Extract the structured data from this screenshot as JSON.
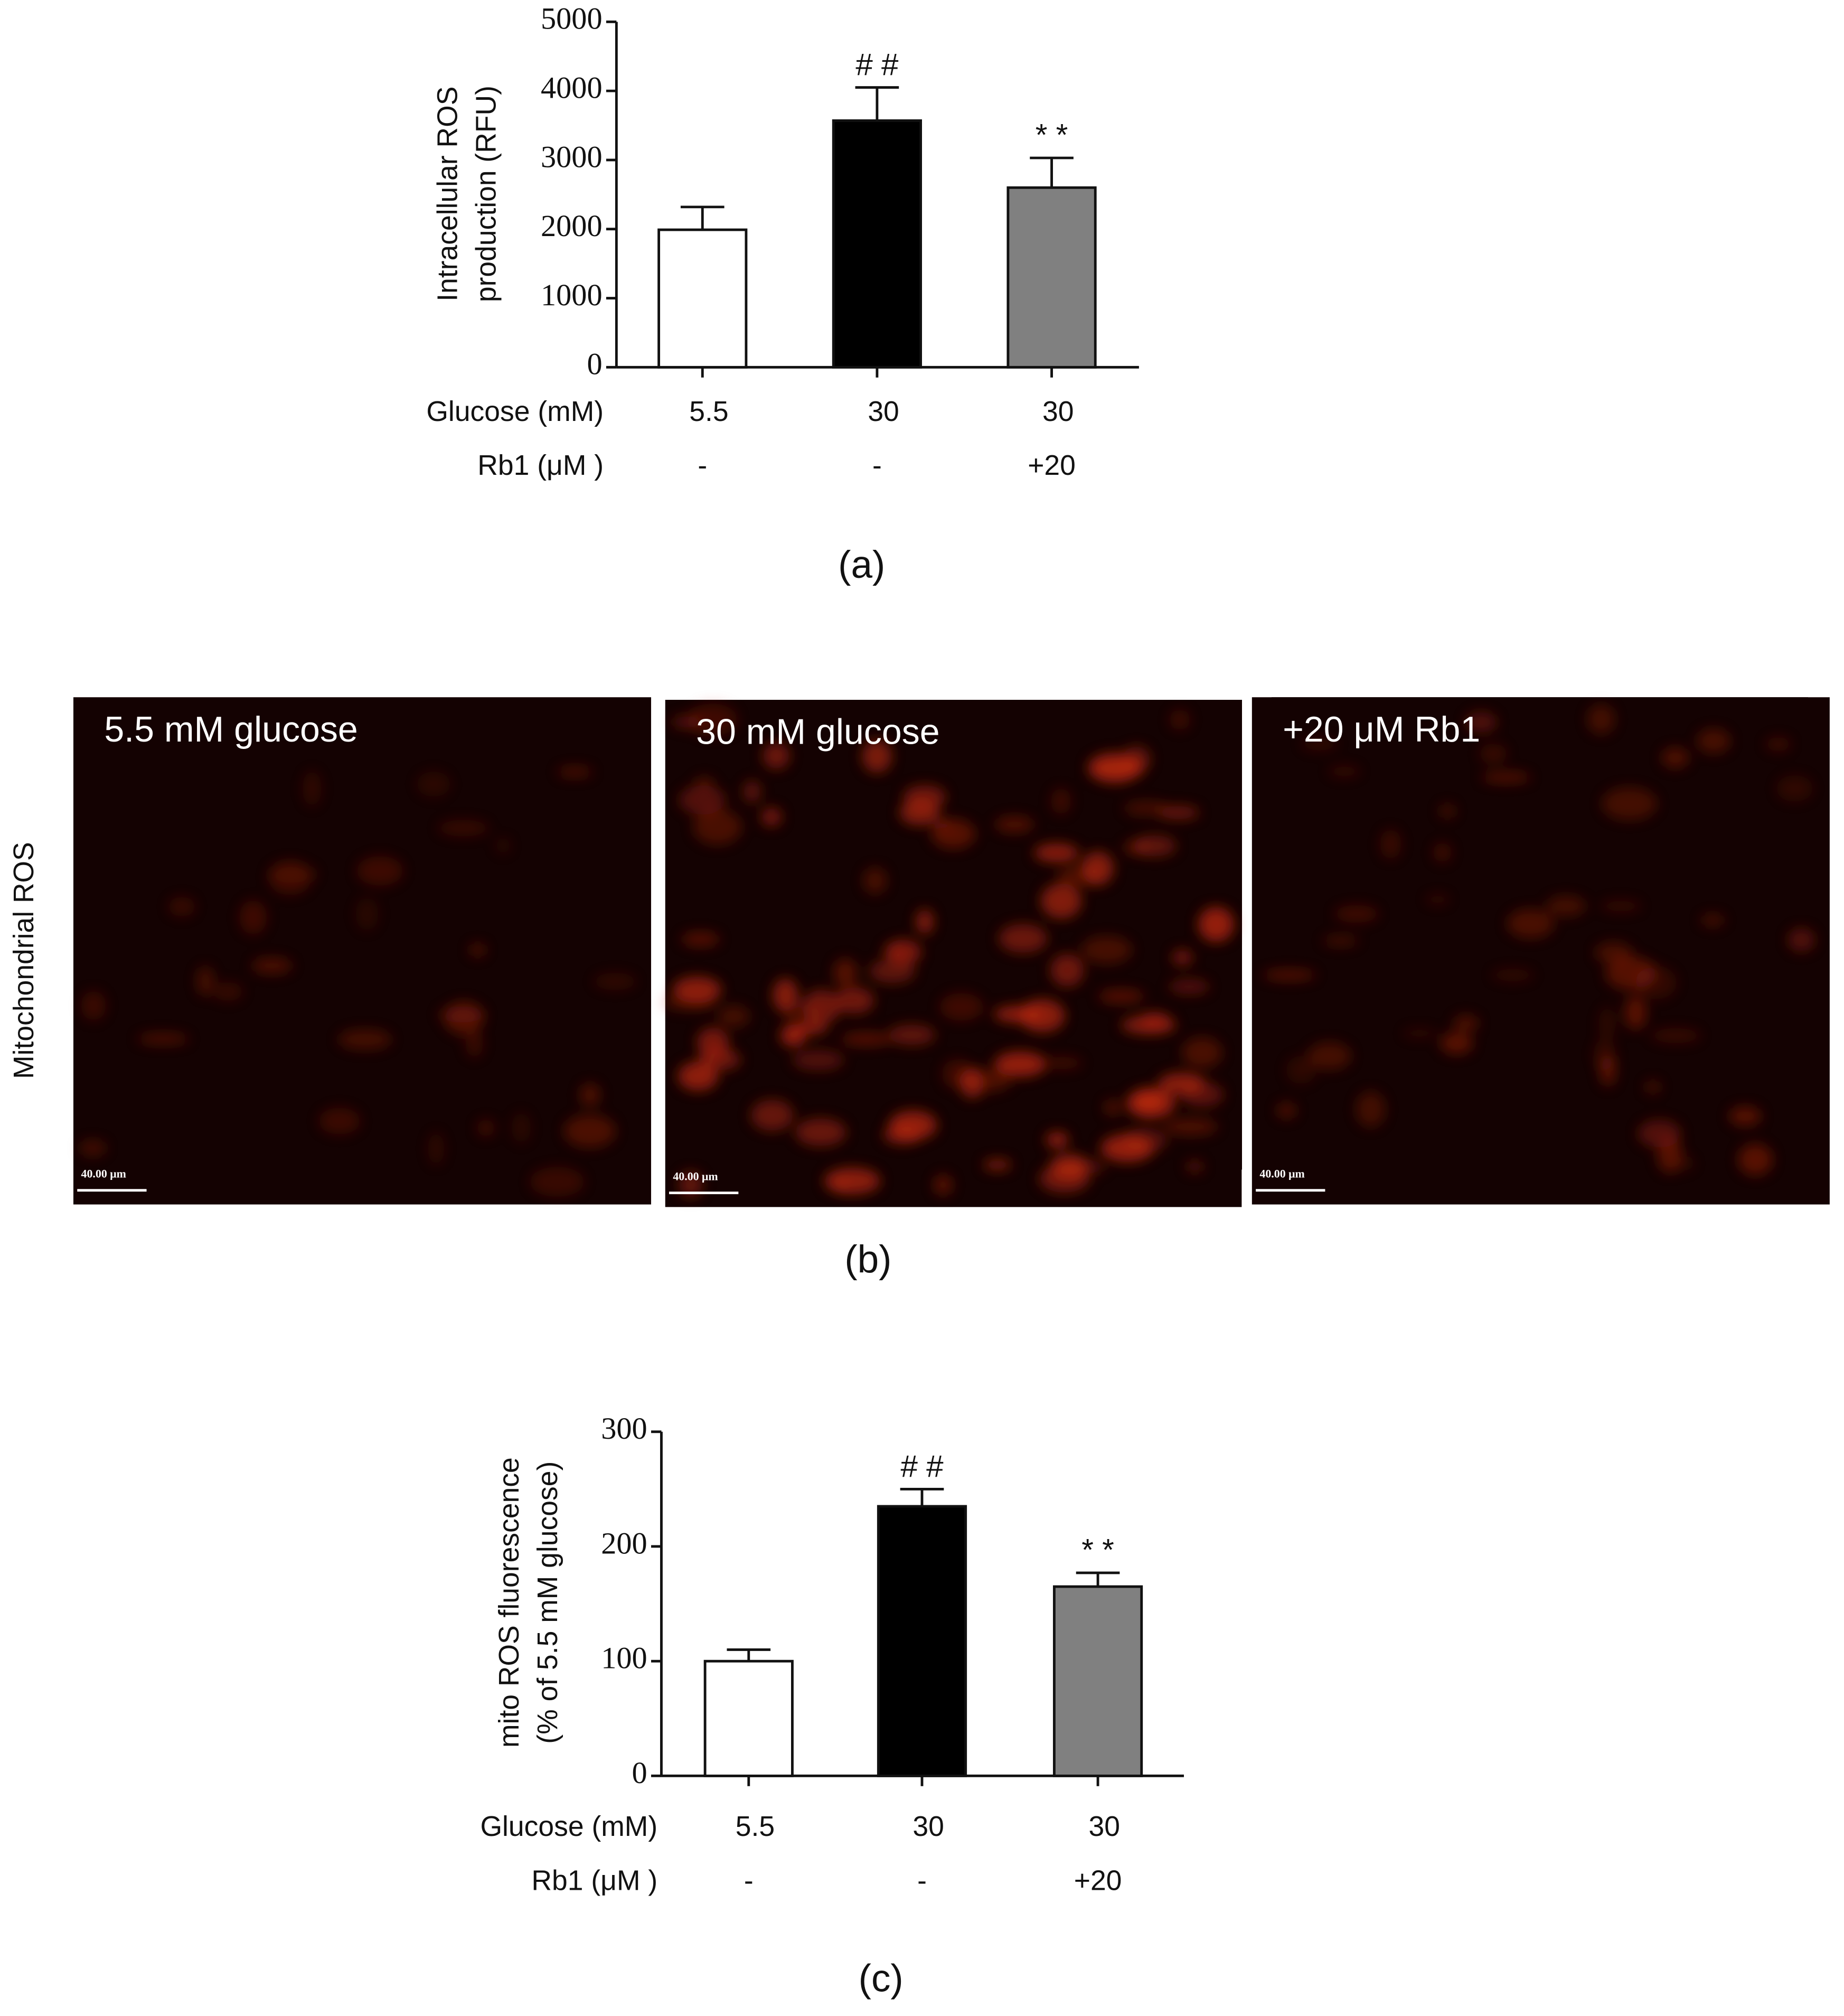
{
  "chart_data": [
    {
      "type": "bar",
      "ylabel": [
        "Intracellular  ROS",
        "production (RFU)"
      ],
      "categories_label": "Glucose (mM)",
      "categories": [
        "5.5",
        "30",
        "30"
      ],
      "sub_categories_label": "Rb1 (μM )",
      "sub_categories": [
        "-",
        "-",
        "+20"
      ],
      "values": [
        1990,
        3570,
        2600
      ],
      "errors": [
        330,
        480,
        430
      ],
      "colors": [
        "#ffffff",
        "#000000",
        "#808080"
      ],
      "annotations": [
        {
          "index": 1,
          "text": "# #"
        },
        {
          "index": 2,
          "text": "* *"
        }
      ],
      "ylim": [
        0,
        5000
      ],
      "yticks": [
        0,
        1000,
        2000,
        3000,
        4000,
        5000
      ]
    },
    {
      "type": "bar",
      "ylabel": [
        "mito ROS fluorescence",
        "(% of 5.5 mM glucose)"
      ],
      "categories_label": "Glucose (mM)",
      "categories": [
        "5.5",
        "30",
        "30"
      ],
      "sub_categories_label": "Rb1 (μM )",
      "sub_categories": [
        "-",
        "-",
        "+20"
      ],
      "values": [
        100,
        235,
        165
      ],
      "errors": [
        10,
        15,
        12
      ],
      "colors": [
        "#ffffff",
        "#000000",
        "#808080"
      ],
      "annotations": [
        {
          "index": 1,
          "text": "# #"
        },
        {
          "index": 2,
          "text": "* *"
        }
      ],
      "ylim": [
        0,
        300
      ],
      "yticks": [
        0,
        100,
        200,
        300
      ]
    }
  ],
  "panel_labels": [
    "(a)",
    "(b)",
    "(c)"
  ],
  "images": {
    "row_label": "Mitochondrial ROS",
    "panels": [
      {
        "label": "5.5 mM glucose",
        "scale_bar": "40.00 μm"
      },
      {
        "label": "30 mM glucose",
        "scale_bar": "40.00 μm"
      },
      {
        "label": "+20 μM Rb1",
        "scale_bar": "40.00 μm"
      }
    ]
  }
}
